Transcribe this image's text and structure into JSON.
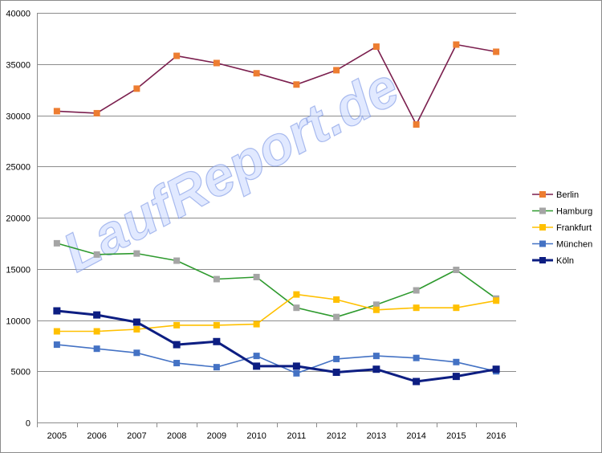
{
  "chart_data": {
    "type": "line",
    "title": "",
    "xlabel": "",
    "ylabel": "",
    "x": [
      "2005",
      "2006",
      "2007",
      "2008",
      "2009",
      "2010",
      "2011",
      "2012",
      "2013",
      "2014",
      "2015",
      "2016"
    ],
    "ylim": [
      0,
      40000
    ],
    "y_ticks": [
      "0",
      "5000",
      "10000",
      "15000",
      "20000",
      "25000",
      "30000",
      "35000",
      "40000"
    ],
    "y_tick_values": [
      0,
      5000,
      10000,
      15000,
      20000,
      25000,
      30000,
      35000,
      40000
    ],
    "grid": true,
    "legend_position": "right",
    "watermark": "LaufReport.de",
    "series": [
      {
        "name": "Berlin",
        "line_color": "#7b1f4e",
        "marker_color": "#ed7d31",
        "line_width": 1.6,
        "values": [
          30400,
          30200,
          32600,
          35800,
          35100,
          34100,
          33000,
          34400,
          36700,
          29100,
          36900,
          36200
        ]
      },
      {
        "name": "Hamburg",
        "line_color": "#2e9a2e",
        "marker_color": "#a5a5a5",
        "line_width": 1.6,
        "values": [
          17500,
          16400,
          16500,
          15800,
          14000,
          14200,
          11200,
          10300,
          11500,
          12900,
          14900,
          12100
        ]
      },
      {
        "name": "Frankfurt",
        "line_color": "#ffc000",
        "marker_color": "#ffc000",
        "line_width": 1.6,
        "values": [
          8900,
          8900,
          9100,
          9500,
          9500,
          9600,
          12500,
          12000,
          11000,
          11200,
          11200,
          11900
        ]
      },
      {
        "name": "München",
        "line_color": "#4472c4",
        "marker_color": "#4472c4",
        "line_width": 1.6,
        "values": [
          7600,
          7200,
          6800,
          5800,
          5400,
          6500,
          4800,
          6200,
          6500,
          6300,
          5900,
          5000
        ]
      },
      {
        "name": "Köln",
        "line_color": "#0d1e82",
        "marker_color": "#0d1e82",
        "line_width": 3,
        "values": [
          10900,
          10500,
          9800,
          7600,
          7900,
          5500,
          5500,
          4900,
          5200,
          4000,
          4500,
          5200
        ]
      }
    ]
  }
}
